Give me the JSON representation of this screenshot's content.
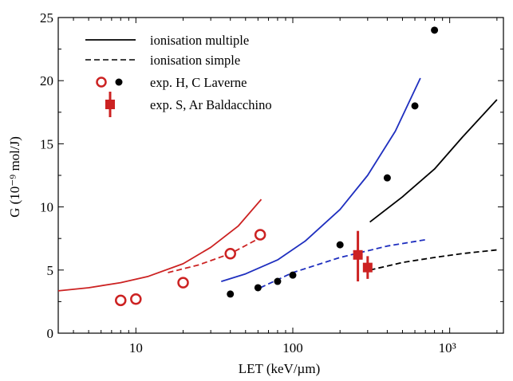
{
  "chart_data": {
    "type": "line",
    "xlabel": "LET (keV/µm)",
    "ylabel": "G (10⁻⁹ mol/J)",
    "x_scale": "log",
    "xlim": [
      3.2,
      2200
    ],
    "ylim": [
      0,
      25
    ],
    "y_ticks": [
      0,
      5,
      10,
      15,
      20,
      25
    ],
    "y_tick_labels": [
      "0",
      "5",
      "10",
      "15",
      "20",
      "25"
    ],
    "x_ticks": [
      10,
      100,
      1000
    ],
    "x_tick_labels": [
      "10",
      "100",
      "10³"
    ],
    "grid": false,
    "legend": {
      "placement": "top-left",
      "entries": [
        {
          "label": "ionisation multiple",
          "style": "solid-line"
        },
        {
          "label": "ionisation simple",
          "style": "dashed-line"
        },
        {
          "label": "exp. H, C  Laverne",
          "style": "circles"
        },
        {
          "label": "exp. S, Ar Baldacchino",
          "style": "square-errorbar"
        }
      ]
    },
    "series": [
      {
        "kind": "multiple",
        "color": "#cc2222",
        "x": [
          3.2,
          5,
          8,
          12,
          20,
          30,
          45,
          63
        ],
        "y": [
          3.35,
          3.6,
          4.0,
          4.5,
          5.5,
          6.8,
          8.5,
          10.6
        ]
      },
      {
        "kind": "simple",
        "color": "#cc2222",
        "x": [
          16,
          25,
          40,
          63
        ],
        "y": [
          4.8,
          5.4,
          6.3,
          7.6
        ]
      },
      {
        "kind": "multiple",
        "color": "#1f2fbf",
        "x": [
          35,
          50,
          80,
          120,
          200,
          300,
          450,
          650
        ],
        "y": [
          4.1,
          4.7,
          5.8,
          7.3,
          9.8,
          12.5,
          16.0,
          20.2
        ]
      },
      {
        "kind": "simple",
        "color": "#1f2fbf",
        "x": [
          62,
          100,
          200,
          400,
          700
        ],
        "y": [
          3.6,
          4.8,
          6.0,
          6.9,
          7.4
        ]
      },
      {
        "kind": "multiple",
        "color": "#000000",
        "x": [
          310,
          500,
          800,
          1200,
          2000
        ],
        "y": [
          8.8,
          10.8,
          13.0,
          15.5,
          18.5
        ]
      },
      {
        "kind": "simple",
        "color": "#000000",
        "x": [
          310,
          500,
          800,
          1200,
          2000
        ],
        "y": [
          5.0,
          5.6,
          6.0,
          6.3,
          6.6
        ]
      }
    ],
    "points": {
      "laverne_open_red": {
        "x": [
          8,
          10,
          20,
          40,
          62
        ],
        "y": [
          2.6,
          2.7,
          4.0,
          6.3,
          7.8
        ]
      },
      "laverne_filled_black": {
        "x": [
          40,
          60,
          80,
          100,
          200,
          400,
          600,
          800
        ],
        "y": [
          3.1,
          3.6,
          4.1,
          4.6,
          7.0,
          12.3,
          18.0,
          24.0
        ]
      },
      "baldacchino": [
        {
          "x": 260,
          "y": 6.2,
          "ylow": 4.1,
          "yhigh": 8.1
        },
        {
          "x": 300,
          "y": 5.2,
          "ylow": 4.3,
          "yhigh": 6.1
        }
      ]
    }
  }
}
